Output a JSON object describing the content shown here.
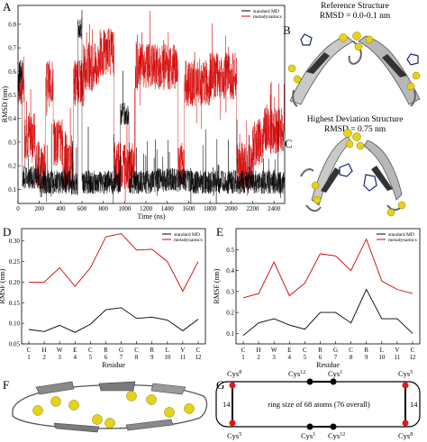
{
  "panels": {
    "A": "A",
    "B": "B",
    "C": "C",
    "D": "D",
    "E": "E",
    "F": "F",
    "G": "G"
  },
  "structure_captions": {
    "reference_title": "Reference Structure",
    "reference_rmsd": "RMSD = 0.0-0.1 nm",
    "highest_title": "Highest Deviation Structure",
    "highest_rmsd": "RMSD = 0.75 nm"
  },
  "colors": {
    "standard_md": "#000000",
    "metadynamics": "#d40000",
    "sulfur": "#e7d21a",
    "cys_node": "#e01a1a"
  },
  "ring_diagram": {
    "labels": {
      "top_left": "Cys8",
      "top_mid_left": "Cys12",
      "top_mid_right": "Cys1",
      "top_right": "Cys5",
      "bottom_left": "Cys5",
      "bottom_mid_left": "Cys1",
      "bottom_mid_right": "Cys12",
      "bottom_right": "Cys8"
    },
    "label_base": "Cys",
    "sup": {
      "top_left": "8",
      "top_mid_left": "12",
      "top_mid_right": "1",
      "top_right": "5",
      "bottom_left": "5",
      "bottom_mid_left": "1",
      "bottom_mid_right": "12",
      "bottom_right": "8"
    },
    "left_size": "14",
    "right_size": "14",
    "center_text": "ring size of 68 atoms (76 overall)"
  },
  "chart_data": [
    {
      "id": "A",
      "type": "line",
      "xlabel": "Time (ns)",
      "ylabel": "RMSD (nm)",
      "xlim": [
        0,
        2500
      ],
      "ylim": [
        0.04,
        0.88
      ],
      "xticks": [
        0,
        200,
        400,
        600,
        800,
        1000,
        1200,
        1400,
        1600,
        1800,
        2000,
        2200,
        2400
      ],
      "yticks": [
        0.1,
        0.2,
        0.3,
        0.4,
        0.5,
        0.6,
        0.7,
        0.8
      ],
      "legend": "top-right",
      "series": [
        {
          "name": "standard MD",
          "color": "#000000",
          "segments": [
            [
              0,
              10,
              0.55
            ],
            [
              10,
              40,
              0.6
            ],
            [
              40,
              200,
              0.15
            ],
            [
              200,
              500,
              0.13
            ],
            [
              500,
              560,
              0.12
            ],
            [
              560,
              600,
              0.78
            ],
            [
              600,
              620,
              0.12
            ],
            [
              620,
              800,
              0.13
            ],
            [
              800,
              960,
              0.13
            ],
            [
              960,
              1040,
              0.42
            ],
            [
              1040,
              1300,
              0.13
            ],
            [
              1300,
              1600,
              0.14
            ],
            [
              1600,
              1900,
              0.13
            ],
            [
              1900,
              2200,
              0.13
            ],
            [
              2200,
              2500,
              0.13
            ]
          ],
          "fluct": 0.05
        },
        {
          "name": "metadynamics",
          "color": "#d40000",
          "segments": [
            [
              0,
              60,
              0.55
            ],
            [
              60,
              160,
              0.33
            ],
            [
              160,
              260,
              0.2
            ],
            [
              260,
              330,
              0.55
            ],
            [
              330,
              420,
              0.3
            ],
            [
              420,
              520,
              0.2
            ],
            [
              520,
              620,
              0.55
            ],
            [
              620,
              760,
              0.62
            ],
            [
              760,
              900,
              0.68
            ],
            [
              900,
              1100,
              0.2
            ],
            [
              1100,
              1300,
              0.62
            ],
            [
              1300,
              1500,
              0.62
            ],
            [
              1500,
              1560,
              0.2
            ],
            [
              1560,
              1800,
              0.55
            ],
            [
              1800,
              2050,
              0.58
            ],
            [
              2050,
              2200,
              0.2
            ],
            [
              2200,
              2300,
              0.3
            ],
            [
              2300,
              2500,
              0.35
            ]
          ],
          "fluct": 0.1
        }
      ]
    },
    {
      "id": "D",
      "type": "line",
      "xlabel": "Residue",
      "ylabel": "RMSF (nm)",
      "categories": [
        "C",
        "H",
        "W",
        "E",
        "C",
        "R",
        "G",
        "C",
        "R",
        "L",
        "V",
        "C"
      ],
      "x": [
        1,
        2,
        3,
        4,
        5,
        6,
        7,
        8,
        9,
        10,
        11,
        12
      ],
      "ylim": [
        0.05,
        0.33
      ],
      "yticks": [
        0.05,
        0.1,
        0.15,
        0.2,
        0.25,
        0.3
      ],
      "legend": "top-right",
      "series": [
        {
          "name": "standard MD",
          "color": "#000000",
          "values": [
            0.085,
            0.08,
            0.095,
            0.078,
            0.098,
            0.133,
            0.138,
            0.112,
            0.115,
            0.108,
            0.082,
            0.11
          ]
        },
        {
          "name": "metadynamics",
          "color": "#d40000",
          "values": [
            0.2,
            0.2,
            0.235,
            0.19,
            0.235,
            0.31,
            0.318,
            0.278,
            0.28,
            0.25,
            0.178,
            0.25
          ]
        }
      ]
    },
    {
      "id": "E",
      "type": "line",
      "xlabel": "Residue",
      "ylabel": "RMSF (nm)",
      "categories": [
        "C",
        "H",
        "W",
        "E",
        "C",
        "R",
        "G",
        "C",
        "R",
        "L",
        "V",
        "C"
      ],
      "x": [
        1,
        2,
        3,
        4,
        5,
        6,
        7,
        8,
        9,
        10,
        11,
        12
      ],
      "ylim": [
        0.05,
        0.6
      ],
      "yticks": [
        0.1,
        0.2,
        0.3,
        0.4,
        0.5
      ],
      "legend": "top-right",
      "series": [
        {
          "name": "standard MD",
          "color": "#000000",
          "values": [
            0.09,
            0.15,
            0.17,
            0.14,
            0.12,
            0.2,
            0.2,
            0.15,
            0.31,
            0.17,
            0.17,
            0.1
          ]
        },
        {
          "name": "metadynamics",
          "color": "#d40000",
          "values": [
            0.27,
            0.29,
            0.44,
            0.28,
            0.34,
            0.48,
            0.47,
            0.4,
            0.55,
            0.35,
            0.31,
            0.29
          ]
        }
      ]
    }
  ]
}
